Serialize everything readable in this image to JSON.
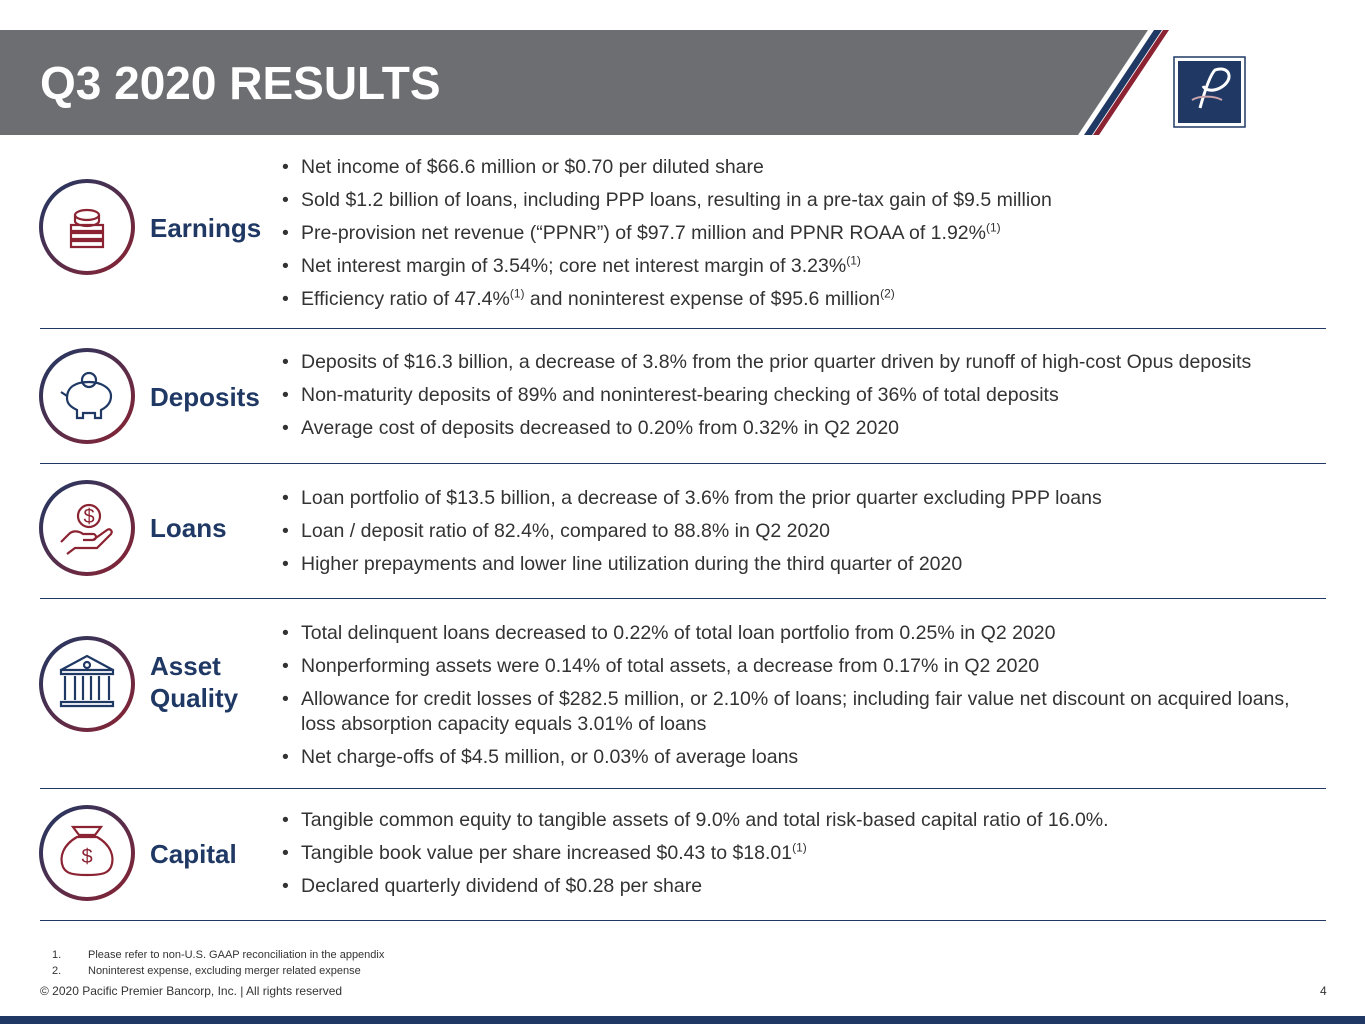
{
  "header": {
    "title": "Q3 2020 RESULTS"
  },
  "sections": [
    {
      "label": "Earnings",
      "bullets": [
        [
          {
            "text": "Net income of $66.6 million or $0.70 per diluted share"
          }
        ],
        [
          {
            "text": "Sold $1.2 billion of loans, including PPP loans, resulting in a pre-tax gain of $9.5 million"
          }
        ],
        [
          {
            "text": "Pre-provision net revenue (“PPNR”) of $97.7 million and PPNR ROAA of 1.92%"
          },
          {
            "sup": "(1)"
          }
        ],
        [
          {
            "text": "Net interest margin of 3.54%; core net interest margin of 3.23%"
          },
          {
            "sup": "(1)"
          }
        ],
        [
          {
            "text": "Efficiency ratio of 47.4%"
          },
          {
            "sup": "(1)"
          },
          {
            "text": " and noninterest expense of $95.6 million"
          },
          {
            "sup": "(2)"
          }
        ]
      ]
    },
    {
      "label": "Deposits",
      "bullets": [
        [
          {
            "text": "Deposits of $16.3 billion, a decrease of 3.8% from the prior quarter driven by runoff of high-cost Opus deposits"
          }
        ],
        [
          {
            "text": "Non-maturity deposits of 89% and noninterest-bearing checking of 36% of total deposits"
          }
        ],
        [
          {
            "text": "Average cost of deposits decreased to 0.20% from 0.32% in Q2 2020"
          }
        ]
      ]
    },
    {
      "label": "Loans",
      "bullets": [
        [
          {
            "text": "Loan portfolio of $13.5 billion, a decrease of 3.6% from the prior quarter excluding PPP loans"
          }
        ],
        [
          {
            "text": "Loan / deposit ratio of 82.4%, compared to 88.8% in Q2 2020"
          }
        ],
        [
          {
            "text": "Higher prepayments and lower line utilization during the third quarter of 2020"
          }
        ]
      ]
    },
    {
      "label": "Asset Quality",
      "bullets": [
        [
          {
            "text": "Total delinquent loans decreased to 0.22% of total loan portfolio from 0.25% in Q2 2020"
          }
        ],
        [
          {
            "text": "Nonperforming assets were 0.14% of total assets, a decrease from 0.17% in Q2 2020"
          }
        ],
        [
          {
            "text": "Allowance for credit losses of $282.5 million, or 2.10% of loans; including fair value net discount on acquired loans, loss absorption capacity equals 3.01% of loans"
          }
        ],
        [
          {
            "text": "Net charge-offs of $4.5 million, or 0.03% of average loans"
          }
        ]
      ]
    },
    {
      "label": "Capital",
      "bullets": [
        [
          {
            "text": "Tangible common equity to tangible assets of 9.0% and total risk-based capital ratio of 16.0%."
          }
        ],
        [
          {
            "text": "Tangible book value per share increased $0.43 to $18.01"
          },
          {
            "sup": "(1)"
          }
        ],
        [
          {
            "text": "Declared quarterly dividend of $0.28 per share"
          }
        ]
      ]
    }
  ],
  "footnotes": [
    {
      "number": "1.",
      "text": "Please refer to non-U.S. GAAP reconciliation in the appendix"
    },
    {
      "number": "2.",
      "text": "Noninterest expense, excluding merger related expense"
    }
  ],
  "footer": {
    "copyright": "© 2020 Pacific Premier Bancorp, Inc. | All rights reserved",
    "page": "4"
  }
}
